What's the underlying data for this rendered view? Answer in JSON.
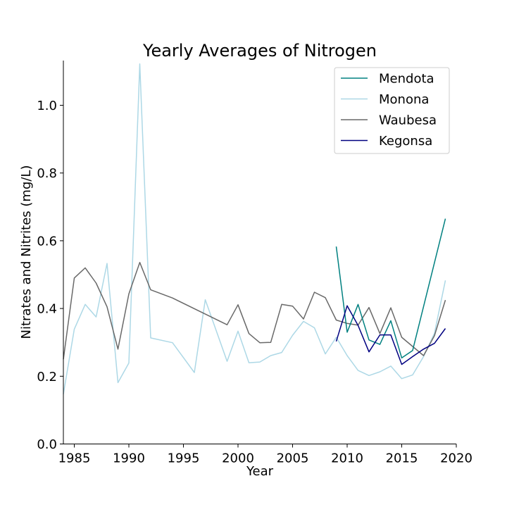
{
  "chart_data": {
    "type": "line",
    "title": "Yearly Averages of Nitrogen",
    "xlabel": "Year",
    "ylabel": "Nitrates and Nitrites (mg/L)",
    "xlim": [
      1984,
      2020
    ],
    "ylim": [
      0,
      1.132
    ],
    "xticks": [
      1985,
      1990,
      1995,
      2000,
      2005,
      2010,
      2015,
      2020
    ],
    "yticks": [
      "0.0",
      "0.2",
      "0.4",
      "0.6",
      "0.8",
      "1.0"
    ],
    "grid": false,
    "legend_position": "top-right",
    "series": [
      {
        "name": "Mendota",
        "color": "#008080",
        "x": [
          2009,
          2010,
          2011,
          2012,
          2013,
          2014,
          2015,
          2016,
          2019
        ],
        "y": [
          0.583,
          0.33,
          0.412,
          0.307,
          0.294,
          0.364,
          0.254,
          0.276,
          0.665
        ]
      },
      {
        "name": "Monona",
        "color": "#add8e6",
        "x": [
          1984,
          1985,
          1986,
          1987,
          1988,
          1989,
          1990,
          1991,
          1992,
          1994,
          1996,
          1997,
          1999,
          2000,
          2001,
          2002,
          2003,
          2004,
          2005,
          2006,
          2007,
          2008,
          2009,
          2010,
          2011,
          2012,
          2013,
          2014,
          2015,
          2016,
          2017,
          2018,
          2019
        ],
        "y": [
          0.147,
          0.339,
          0.412,
          0.375,
          0.533,
          0.181,
          0.239,
          1.122,
          0.313,
          0.299,
          0.211,
          0.426,
          0.244,
          0.333,
          0.24,
          0.242,
          0.261,
          0.27,
          0.321,
          0.362,
          0.343,
          0.266,
          0.315,
          0.261,
          0.217,
          0.202,
          0.213,
          0.23,
          0.193,
          0.204,
          0.258,
          0.327,
          0.483
        ]
      },
      {
        "name": "Waubesa",
        "color": "#696969",
        "x": [
          1984,
          1985,
          1986,
          1987,
          1988,
          1989,
          1990,
          1991,
          1992,
          1994,
          1999,
          2000,
          2001,
          2002,
          2003,
          2004,
          2005,
          2006,
          2007,
          2008,
          2009,
          2010,
          2011,
          2012,
          2013,
          2014,
          2015,
          2016,
          2017,
          2018,
          2019
        ],
        "y": [
          0.25,
          0.49,
          0.52,
          0.475,
          0.405,
          0.28,
          0.443,
          0.536,
          0.455,
          0.431,
          0.352,
          0.411,
          0.326,
          0.299,
          0.3,
          0.412,
          0.407,
          0.369,
          0.448,
          0.432,
          0.366,
          0.356,
          0.351,
          0.403,
          0.326,
          0.402,
          0.315,
          0.288,
          0.261,
          0.32,
          0.425
        ]
      },
      {
        "name": "Kegonsa",
        "color": "#000080",
        "x": [
          2009,
          2010,
          2011,
          2012,
          2013,
          2014,
          2015,
          2016,
          2017,
          2018,
          2019
        ],
        "y": [
          0.303,
          0.408,
          0.35,
          0.272,
          0.322,
          0.322,
          0.235,
          0.258,
          0.28,
          0.297,
          0.341
        ]
      }
    ]
  }
}
